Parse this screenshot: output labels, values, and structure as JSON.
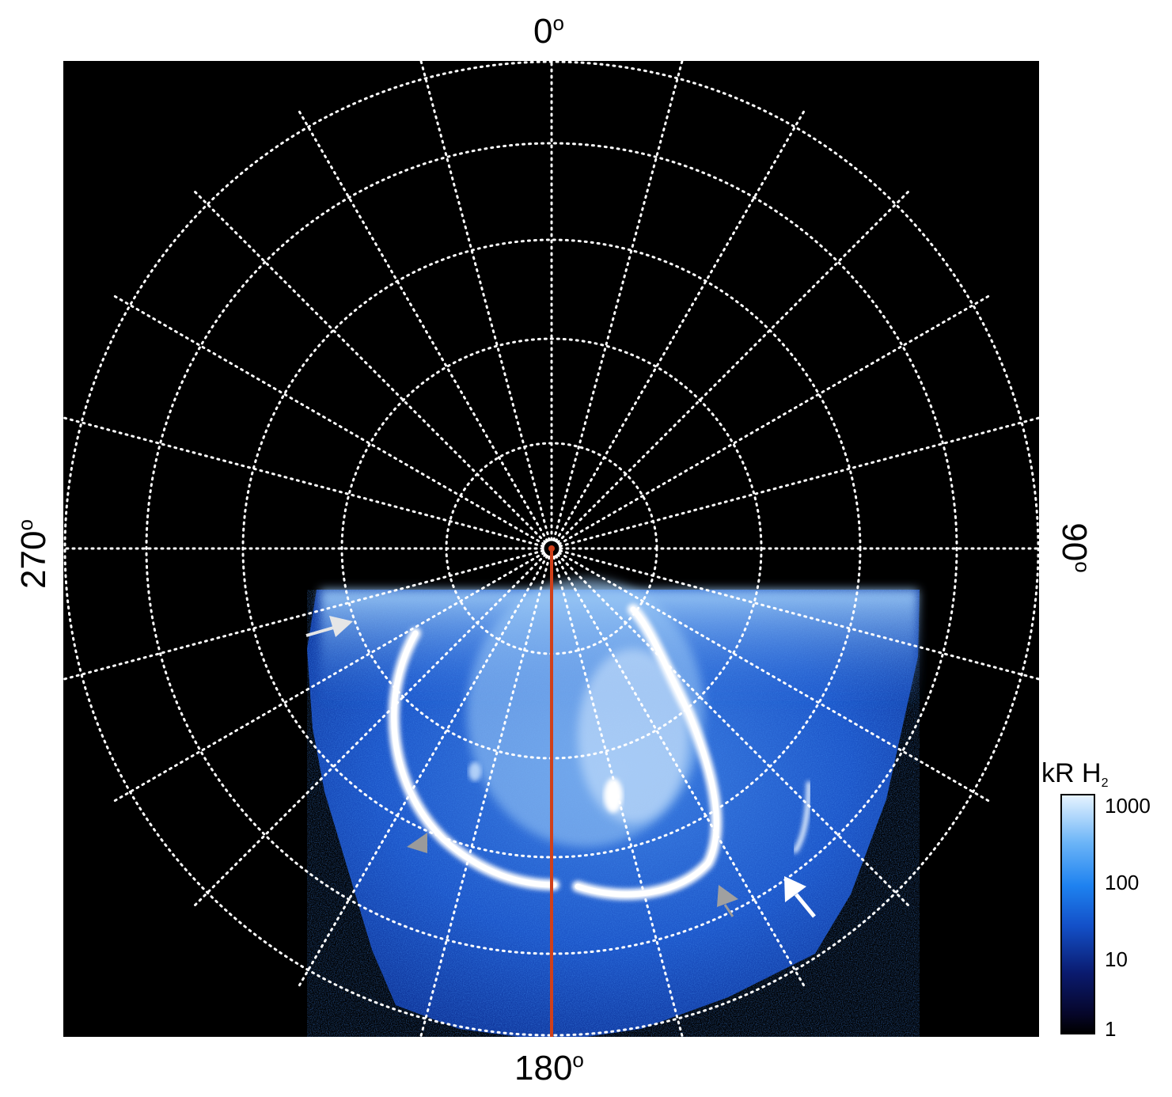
{
  "figure": {
    "axis_labels": {
      "top": "0",
      "bottom": "180",
      "left": "270",
      "right": "90",
      "degree_symbol": "o"
    },
    "colorbar": {
      "title_main": "kR H",
      "title_sub": "2",
      "ticks": [
        "1000",
        "100",
        "10",
        "1"
      ],
      "scale": "log"
    },
    "colors": {
      "background": "#000000",
      "grid": "#ffffff",
      "meridian_line": "#d0401a",
      "aurora_bright": "#ffffff",
      "aurora_mid": "#3f8fe8",
      "aurora_dim": "#0b2a8a",
      "arrow_white": "#ffffff",
      "arrow_gray": "#b4b4b4"
    },
    "markers": [
      {
        "name": "white-arrow-left",
        "color": "white"
      },
      {
        "name": "white-arrow-right",
        "color": "white"
      },
      {
        "name": "gray-triangle-left",
        "color": "gray"
      },
      {
        "name": "gray-triangle-right",
        "color": "gray"
      }
    ]
  }
}
